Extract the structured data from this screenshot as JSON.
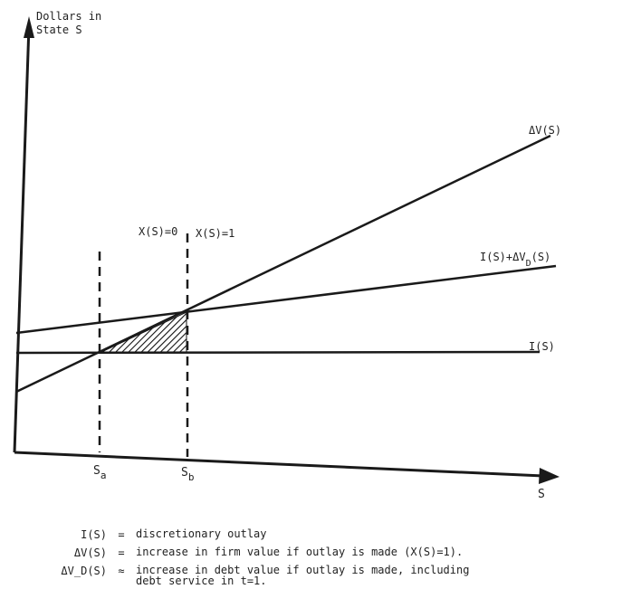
{
  "axes": {
    "y_label_line1": "Dollars in",
    "y_label_line2": "State S",
    "x_label": "S"
  },
  "lines": {
    "delta_v": "ΔV(S)",
    "i_plus_delta_vd_main": "I(S)+ΔV",
    "i_plus_delta_vd_sub": "D",
    "i_plus_delta_vd_tail": "(S)",
    "i": "I(S)"
  },
  "markers": {
    "x_zero": "X(S)=0",
    "x_one": "X(S)=1",
    "sa_main": "S",
    "sa_sub": "a",
    "sb_main": "S",
    "sb_sub": "b"
  },
  "legend": [
    {
      "term": "I(S)",
      "eq": "=",
      "desc": "discretionary outlay"
    },
    {
      "term": "ΔV(S)",
      "eq": "=",
      "desc": "increase in firm value if outlay is made (X(S)=1)."
    },
    {
      "term": "ΔV_D(S)",
      "eq": "≈",
      "desc": "increase in debt value if outlay is made, including\ndebt service in t=1."
    }
  ],
  "colors": {
    "ink": "#1a1a1a"
  }
}
